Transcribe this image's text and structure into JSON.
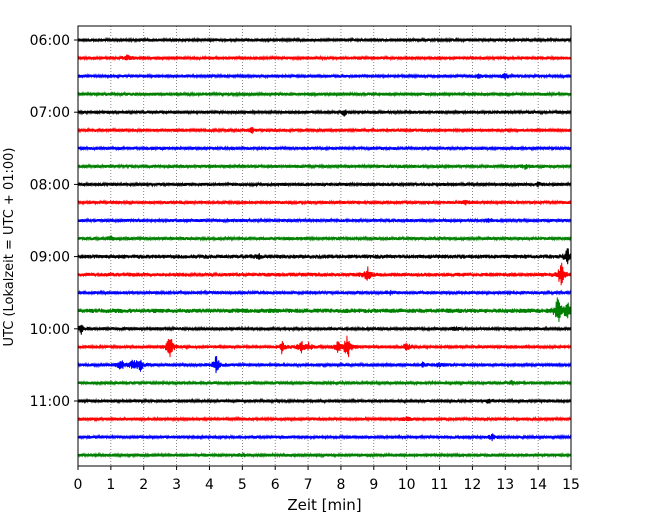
{
  "chart_data": {
    "type": "line",
    "title": "",
    "xlabel": "Zeit  [min]",
    "ylabel": "UTC (Lokalzeit = UTC + 01:00)",
    "xlim": [
      0,
      15
    ],
    "x_ticks": [
      "0",
      "1",
      "2",
      "3",
      "4",
      "5",
      "6",
      "7",
      "8",
      "9",
      "10",
      "11",
      "12",
      "13",
      "14",
      "15"
    ],
    "y_ticks": [
      "06:00",
      "07:00",
      "08:00",
      "09:00",
      "10:00",
      "11:00"
    ],
    "grid": "vertical-dotted",
    "trace_interval_minutes": 15,
    "color_cycle": [
      "#000000",
      "#ff0000",
      "#0000ff",
      "#008000"
    ],
    "traces": [
      {
        "start": "06:00",
        "color": "#000000",
        "noise": 1.0,
        "events": []
      },
      {
        "start": "06:15",
        "color": "#ff0000",
        "noise": 1.0,
        "events": [
          [
            1.5,
            4
          ]
        ]
      },
      {
        "start": "06:30",
        "color": "#0000ff",
        "noise": 1.0,
        "events": [
          [
            12.2,
            2.5
          ],
          [
            13.0,
            2.5
          ]
        ]
      },
      {
        "start": "06:45",
        "color": "#008000",
        "noise": 1.0,
        "events": []
      },
      {
        "start": "07:00",
        "color": "#000000",
        "noise": 1.0,
        "events": [
          [
            8.1,
            3
          ]
        ]
      },
      {
        "start": "07:15",
        "color": "#ff0000",
        "noise": 1.0,
        "events": [
          [
            5.3,
            2.5
          ]
        ]
      },
      {
        "start": "07:30",
        "color": "#0000ff",
        "noise": 1.0,
        "events": []
      },
      {
        "start": "07:45",
        "color": "#008000",
        "noise": 1.0,
        "events": [
          [
            13.6,
            2
          ]
        ]
      },
      {
        "start": "08:00",
        "color": "#000000",
        "noise": 1.0,
        "events": [
          [
            14.0,
            2.5
          ]
        ]
      },
      {
        "start": "08:15",
        "color": "#ff0000",
        "noise": 1.0,
        "events": [
          [
            11.8,
            2
          ]
        ]
      },
      {
        "start": "08:30",
        "color": "#0000ff",
        "noise": 1.0,
        "events": [
          [
            12.5,
            2
          ]
        ]
      },
      {
        "start": "08:45",
        "color": "#008000",
        "noise": 1.0,
        "events": [
          [
            1.0,
            2
          ]
        ]
      },
      {
        "start": "09:00",
        "color": "#000000",
        "noise": 1.3,
        "events": [
          [
            5.5,
            2
          ],
          [
            14.9,
            8
          ]
        ]
      },
      {
        "start": "09:15",
        "color": "#ff0000",
        "noise": 1.2,
        "events": [
          [
            8.8,
            8
          ],
          [
            14.7,
            14
          ]
        ]
      },
      {
        "start": "09:30",
        "color": "#0000ff",
        "noise": 1.0,
        "events": [
          [
            9.5,
            2
          ]
        ]
      },
      {
        "start": "09:45",
        "color": "#008000",
        "noise": 1.4,
        "events": [
          [
            14.6,
            14
          ],
          [
            14.9,
            10
          ]
        ]
      },
      {
        "start": "10:00",
        "color": "#000000",
        "noise": 1.0,
        "events": [
          [
            0.1,
            5
          ],
          [
            11.5,
            2
          ]
        ]
      },
      {
        "start": "10:15",
        "color": "#ff0000",
        "noise": 1.0,
        "events": [
          [
            2.8,
            13
          ],
          [
            6.2,
            6
          ],
          [
            6.8,
            6
          ],
          [
            7.0,
            5
          ],
          [
            7.9,
            5
          ],
          [
            8.2,
            14
          ],
          [
            10.0,
            5
          ]
        ]
      },
      {
        "start": "10:30",
        "color": "#0000ff",
        "noise": 1.0,
        "events": [
          [
            1.3,
            6
          ],
          [
            1.7,
            7
          ],
          [
            1.9,
            5
          ],
          [
            4.2,
            10
          ],
          [
            10.5,
            2.5
          ],
          [
            11.0,
            2.5
          ]
        ]
      },
      {
        "start": "10:45",
        "color": "#008000",
        "noise": 1.0,
        "events": [
          [
            13.2,
            2.5
          ]
        ]
      },
      {
        "start": "11:00",
        "color": "#000000",
        "noise": 1.0,
        "events": [
          [
            12.5,
            2
          ]
        ]
      },
      {
        "start": "11:15",
        "color": "#ff0000",
        "noise": 1.0,
        "events": [
          [
            10.0,
            2
          ]
        ]
      },
      {
        "start": "11:30",
        "color": "#0000ff",
        "noise": 1.0,
        "events": [
          [
            12.6,
            3
          ]
        ]
      },
      {
        "start": "11:45",
        "color": "#008000",
        "noise": 1.0,
        "events": [
          [
            5.0,
            2
          ]
        ]
      }
    ]
  }
}
